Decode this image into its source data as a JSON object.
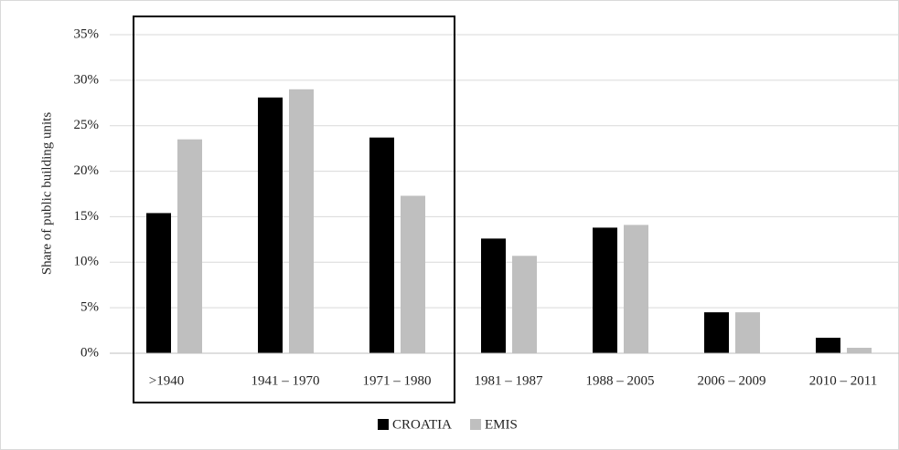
{
  "chart_data": {
    "type": "bar",
    "y_axis_label": "Share of public building units",
    "categories": [
      ">1940",
      "1941 – 1970",
      "1971 – 1980",
      "1981 – 1987",
      "1988 – 2005",
      "2006 – 2009",
      "2010 – 2011"
    ],
    "series": [
      {
        "name": "CROATIA",
        "color": "#000000",
        "values": [
          15.4,
          28.1,
          23.7,
          12.6,
          13.8,
          4.5,
          1.7
        ]
      },
      {
        "name": "EMIS",
        "color": "#bfbfbf",
        "values": [
          23.5,
          29.0,
          17.3,
          10.7,
          14.1,
          4.5,
          0.6
        ]
      }
    ],
    "ylim": [
      0,
      35
    ],
    "yticks": [
      {
        "value": 0,
        "label": "0%"
      },
      {
        "value": 5,
        "label": "5%"
      },
      {
        "value": 10,
        "label": "10%"
      },
      {
        "value": 15,
        "label": "15%"
      },
      {
        "value": 20,
        "label": "20%"
      },
      {
        "value": 25,
        "label": "25%"
      },
      {
        "value": 30,
        "label": "30%"
      },
      {
        "value": 35,
        "label": "35%"
      }
    ],
    "grid": true,
    "legend": "bottom"
  }
}
